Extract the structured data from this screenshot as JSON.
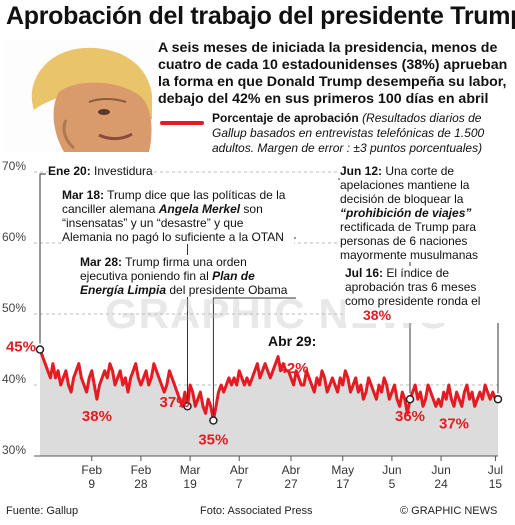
{
  "title": "Aprobación del trabajo del presidente Trump",
  "intro": "A seis meses de iniciada la presidencia, menos de cuatro de cada 10 estadounidenses (38%) aprueban la forma en que Donald Trump desempeña su labor, debajo del 42% en sus primeros 100 días en abril",
  "legend": {
    "label": "Porcentaje de aprobación",
    "note": "(Resultados diarios de Gallup basados en entrevistas telefónicas de 1.500 adultos. Margen de error : ±3 puntos porcentuales)"
  },
  "annotations": {
    "jan20": {
      "date": "Ene 20:",
      "text": "Investidura"
    },
    "mar18": {
      "date": "Mar 18:",
      "t1": "Trump dice que las políticas de la canciller alemana ",
      "name": "Angela Merkel",
      "t2": " son “insensatas” y un “desastre” y que Alemania no pagó lo suficiente a la OTAN"
    },
    "mar28": {
      "date": "Mar 28:",
      "t1": "Trump firma una orden ejecutiva poniendo fin al ",
      "plan": "Plan de Energía Limpia",
      "t2": " del presidente Obama"
    },
    "apr29": {
      "date": "Abr 29:"
    },
    "jun12": {
      "date": "Jun 12:",
      "t1": "Una corte de apelaciones mantiene la decisión de bloquear la ",
      "ban": "“prohibición de viajes”",
      "t2": " rectificada de Trump para personas de 6 naciones mayormente musulmanas"
    },
    "jul16": {
      "date": "Jul 16:",
      "t1": "El índice de aprobación tras 6 meses como presidente ronda el",
      "value": "38%"
    }
  },
  "point_labels": {
    "start": "45%",
    "feb": "38%",
    "mar": "37%",
    "mar28": "35%",
    "apr29": "42%",
    "jun": "36%",
    "jul": "37%"
  },
  "footer": {
    "source": "Fuente: Gallup",
    "photo": "Foto: Associated Press",
    "credit": "© GRAPHIC NEWS"
  },
  "watermark": "GRAPHIC NEWS",
  "colors": {
    "line": "#e31b23",
    "area": "#dcdcdc",
    "text": "#111111"
  },
  "chart_data": {
    "type": "line",
    "title": "Aprobación del trabajo del presidente Trump",
    "ylim": [
      30,
      70
    ],
    "yticks": [
      "30%",
      "40%",
      "50%",
      "60%",
      "70%"
    ],
    "xticks": [
      {
        "label": [
          "Feb",
          "9"
        ],
        "day": 20
      },
      {
        "label": [
          "Feb",
          "28"
        ],
        "day": 39
      },
      {
        "label": [
          "Mar",
          "19"
        ],
        "day": 58
      },
      {
        "label": [
          "Abr",
          "7"
        ],
        "day": 77
      },
      {
        "label": [
          "Abr",
          "27"
        ],
        "day": 97
      },
      {
        "label": [
          "May",
          "17"
        ],
        "day": 117
      },
      {
        "label": [
          "Jun",
          "5"
        ],
        "day": 136
      },
      {
        "label": [
          "Jun",
          "24"
        ],
        "day": 155
      },
      {
        "label": [
          "Jul",
          "15"
        ],
        "day": 176
      }
    ],
    "series": [
      {
        "values": [
          45,
          44,
          43,
          42,
          41,
          43,
          41,
          42,
          40,
          41,
          42,
          40,
          39,
          41,
          42,
          43,
          41,
          40,
          39,
          41,
          42,
          40,
          38,
          40,
          41,
          42,
          41,
          43,
          42,
          40,
          41,
          42,
          40,
          41,
          39,
          41,
          42,
          43,
          41,
          40,
          41,
          42,
          40,
          41,
          43,
          42,
          41,
          40,
          39,
          40,
          42,
          41,
          40,
          39,
          38,
          37,
          39,
          37,
          40,
          39,
          37,
          38,
          39,
          37,
          36,
          38,
          37,
          35,
          37,
          39,
          40,
          39,
          40,
          41,
          40,
          41,
          40,
          42,
          41,
          40,
          41,
          40,
          41,
          42,
          43,
          41,
          42,
          43,
          42,
          41,
          42,
          43,
          44,
          42,
          43,
          42,
          42,
          41,
          40,
          42,
          41,
          40,
          40,
          42,
          41,
          40,
          39,
          41,
          40,
          42,
          41,
          39,
          40,
          41,
          40,
          39,
          41,
          40,
          42,
          41,
          39,
          40,
          41,
          39,
          40,
          38,
          39,
          41,
          40,
          39,
          38,
          40,
          39,
          41,
          40,
          38,
          39,
          40,
          38,
          37,
          39,
          38,
          36,
          38,
          39,
          40,
          38,
          39,
          37,
          38,
          40,
          39,
          38,
          37,
          38,
          37,
          39,
          38,
          40,
          38,
          37,
          39,
          38,
          37,
          39,
          40,
          38,
          39,
          37,
          38,
          39,
          38,
          40,
          39,
          38,
          39,
          38,
          38
        ]
      }
    ]
  }
}
